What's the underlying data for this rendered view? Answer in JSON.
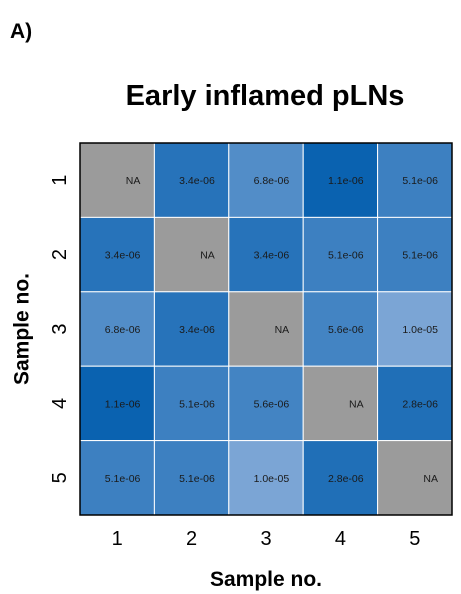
{
  "panel_label": "A)",
  "chart_data": {
    "type": "heatmap",
    "title": "Early inflamed pLNs",
    "xlabel": "Sample no.",
    "ylabel": "Sample no.",
    "x_categories": [
      "1",
      "2",
      "3",
      "4",
      "5"
    ],
    "y_categories": [
      "1",
      "2",
      "3",
      "4",
      "5"
    ],
    "values": [
      [
        null,
        3.4e-06,
        6.8e-06,
        1.1e-06,
        5.1e-06
      ],
      [
        3.4e-06,
        null,
        3.4e-06,
        5.1e-06,
        5.1e-06
      ],
      [
        6.8e-06,
        3.4e-06,
        null,
        5.6e-06,
        1e-05
      ],
      [
        1.1e-06,
        5.1e-06,
        5.6e-06,
        null,
        2.8e-06
      ],
      [
        5.1e-06,
        5.1e-06,
        1e-05,
        2.8e-06,
        null
      ]
    ],
    "labels": [
      [
        "NA",
        "3.4e-06",
        "6.8e-06",
        "1.1e-06",
        "5.1e-06"
      ],
      [
        "3.4e-06",
        "NA",
        "3.4e-06",
        "5.1e-06",
        "5.1e-06"
      ],
      [
        "6.8e-06",
        "3.4e-06",
        "NA",
        "5.6e-06",
        "1.0e-05"
      ],
      [
        "1.1e-06",
        "5.1e-06",
        "5.6e-06",
        "NA",
        "2.8e-06"
      ],
      [
        "5.1e-06",
        "5.1e-06",
        "1.0e-05",
        "2.8e-06",
        "NA"
      ]
    ],
    "colors": {
      "na": "#9b9b9b",
      "low": "#0a62b0",
      "high": "#7ba5d5"
    },
    "legend": "none",
    "grid": false
  }
}
